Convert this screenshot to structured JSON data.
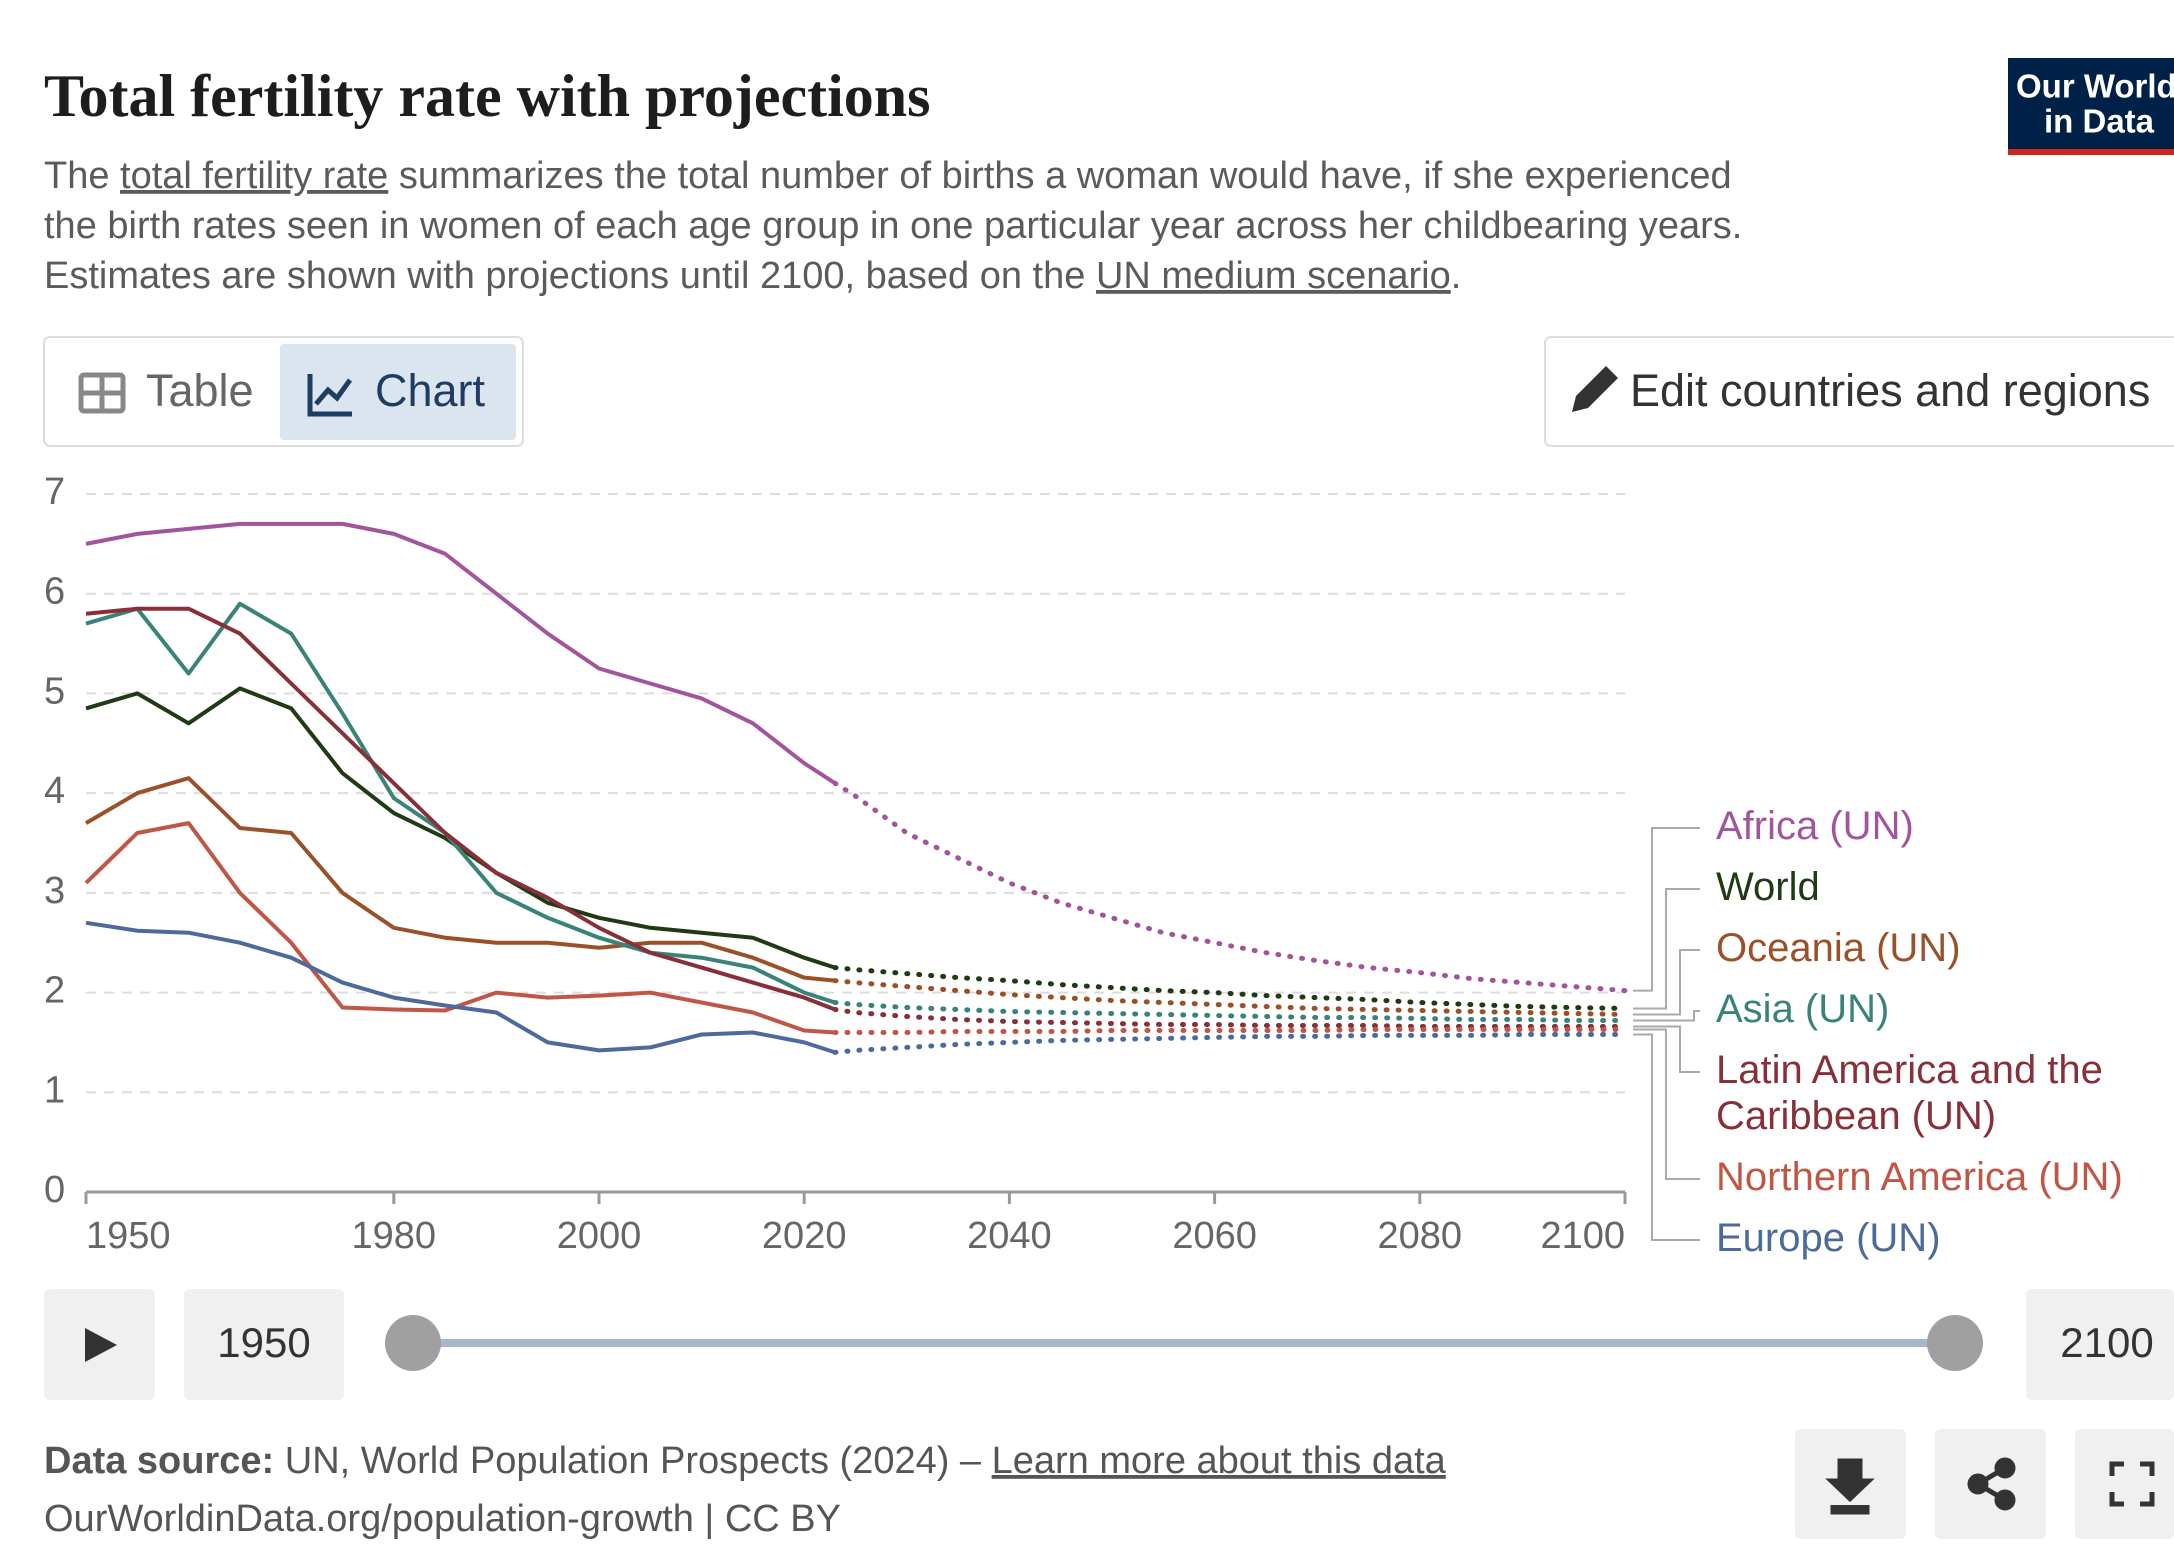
{
  "header": {
    "title": "Total fertility rate with projections",
    "subtitle": [
      [
        {
          "text": "The "
        },
        {
          "text": "total fertility rate",
          "underline": true
        },
        {
          "text": " summarizes the total number of births a woman would have, if she experienced"
        }
      ],
      [
        {
          "text": "the birth rates seen in women of each age group in one particular year across her childbearing years."
        }
      ],
      [
        {
          "text": "Estimates are shown with projections until 2100, based on the "
        },
        {
          "text": "UN medium scenario",
          "underline": true
        },
        {
          "text": "."
        }
      ]
    ],
    "logo": [
      "Our World",
      "in Data"
    ]
  },
  "controls": {
    "tabs": [
      "Table",
      "Chart"
    ],
    "active_tab": 1,
    "edit_button": "Edit countries and regions"
  },
  "chart_data": {
    "type": "line",
    "x": [
      1950,
      1955,
      1960,
      1965,
      1970,
      1975,
      1980,
      1985,
      1990,
      1995,
      2000,
      2005,
      2010,
      2015,
      2020,
      2023,
      2025,
      2030,
      2035,
      2040,
      2045,
      2050,
      2055,
      2060,
      2065,
      2070,
      2075,
      2080,
      2085,
      2090,
      2095,
      2100
    ],
    "projection_from": 2023,
    "xlim": [
      1950,
      2100
    ],
    "xticks": [
      1950,
      1980,
      2000,
      2020,
      2040,
      2060,
      2080,
      2100
    ],
    "ylim": [
      0,
      7
    ],
    "yticks": [
      0,
      1,
      2,
      3,
      4,
      5,
      6,
      7
    ],
    "grid": true,
    "series": [
      {
        "name": "Africa (UN)",
        "color": "#a2559c",
        "values": [
          6.5,
          6.6,
          6.65,
          6.7,
          6.7,
          6.7,
          6.6,
          6.4,
          6.0,
          5.6,
          5.25,
          5.1,
          4.95,
          4.7,
          4.3,
          4.1,
          3.97,
          3.6,
          3.35,
          3.1,
          2.9,
          2.75,
          2.6,
          2.5,
          2.4,
          2.32,
          2.25,
          2.2,
          2.14,
          2.1,
          2.06,
          2.02
        ]
      },
      {
        "name": "World",
        "color": "#1f3a14",
        "values": [
          4.85,
          5.0,
          4.7,
          5.05,
          4.85,
          4.2,
          3.8,
          3.55,
          3.2,
          2.9,
          2.75,
          2.65,
          2.6,
          2.55,
          2.35,
          2.25,
          2.23,
          2.19,
          2.15,
          2.12,
          2.08,
          2.05,
          2.02,
          2.0,
          1.97,
          1.95,
          1.93,
          1.9,
          1.88,
          1.86,
          1.85,
          1.84
        ]
      },
      {
        "name": "Oceania (UN)",
        "color": "#9a5129",
        "values": [
          3.7,
          4.0,
          4.15,
          3.65,
          3.6,
          3.0,
          2.65,
          2.55,
          2.5,
          2.5,
          2.45,
          2.5,
          2.5,
          2.35,
          2.15,
          2.12,
          2.1,
          2.06,
          2.02,
          1.98,
          1.95,
          1.92,
          1.9,
          1.88,
          1.86,
          1.84,
          1.83,
          1.82,
          1.81,
          1.8,
          1.79,
          1.78
        ]
      },
      {
        "name": "Asia (UN)",
        "color": "#3a8378",
        "values": [
          5.7,
          5.85,
          5.2,
          5.9,
          5.6,
          4.8,
          3.95,
          3.6,
          3.0,
          2.75,
          2.55,
          2.4,
          2.35,
          2.25,
          2.0,
          1.9,
          1.88,
          1.85,
          1.83,
          1.81,
          1.8,
          1.79,
          1.78,
          1.77,
          1.76,
          1.75,
          1.75,
          1.74,
          1.73,
          1.73,
          1.72,
          1.72
        ]
      },
      {
        "name": "Latin America and the Caribbean (UN)",
        "color": "#883039",
        "values": [
          5.8,
          5.85,
          5.85,
          5.6,
          5.1,
          4.6,
          4.1,
          3.6,
          3.2,
          2.95,
          2.65,
          2.4,
          2.25,
          2.1,
          1.95,
          1.83,
          1.8,
          1.76,
          1.73,
          1.71,
          1.7,
          1.69,
          1.68,
          1.68,
          1.67,
          1.67,
          1.67,
          1.66,
          1.66,
          1.66,
          1.66,
          1.66
        ]
      },
      {
        "name": "Northern America (UN)",
        "color": "#c05746",
        "values": [
          3.1,
          3.6,
          3.7,
          3.0,
          2.5,
          1.85,
          1.83,
          1.82,
          2.0,
          1.95,
          1.97,
          2.0,
          1.9,
          1.8,
          1.62,
          1.6,
          1.6,
          1.6,
          1.61,
          1.61,
          1.61,
          1.62,
          1.62,
          1.62,
          1.62,
          1.62,
          1.63,
          1.63,
          1.63,
          1.63,
          1.63,
          1.63
        ]
      },
      {
        "name": "Europe (UN)",
        "color": "#4c6a9c",
        "values": [
          2.7,
          2.62,
          2.6,
          2.5,
          2.35,
          2.1,
          1.95,
          1.87,
          1.8,
          1.5,
          1.42,
          1.45,
          1.58,
          1.6,
          1.5,
          1.4,
          1.42,
          1.45,
          1.48,
          1.5,
          1.52,
          1.53,
          1.54,
          1.55,
          1.56,
          1.56,
          1.57,
          1.57,
          1.57,
          1.58,
          1.58,
          1.58
        ]
      }
    ]
  },
  "timeline": {
    "start": 1950,
    "end": 2100
  },
  "footer": {
    "source_label": "Data source:",
    "source": " UN, World Population Prospects (2024) – ",
    "link": "Learn more about this data",
    "url": "OurWorldinData.org/population-growth | CC BY"
  }
}
